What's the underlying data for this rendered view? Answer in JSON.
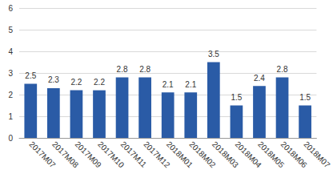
{
  "chart_data": {
    "type": "bar",
    "categories": [
      "2017M07",
      "2017M08",
      "2017M09",
      "2017M10",
      "2017M11",
      "2017M12",
      "2018M01",
      "2018M02",
      "2018M03",
      "2018M04",
      "2018M05",
      "2018M06",
      "2018M07"
    ],
    "values": [
      2.5,
      2.3,
      2.2,
      2.2,
      2.8,
      2.8,
      2.1,
      2.1,
      3.5,
      1.5,
      2.4,
      2.8,
      1.5
    ],
    "color": "#2a5ba6",
    "ylim": [
      0,
      6
    ],
    "yticks": [
      0,
      1,
      2,
      3,
      4,
      5,
      6
    ],
    "grid": true,
    "data_labels": true
  }
}
